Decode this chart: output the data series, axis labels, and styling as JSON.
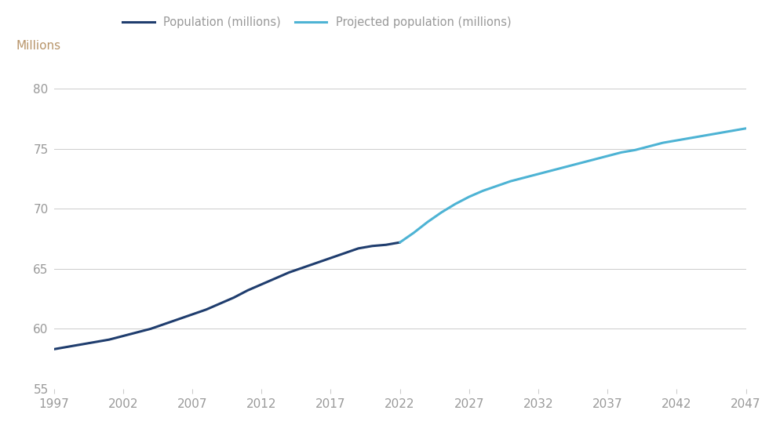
{
  "ylabel": "Millions",
  "xlim": [
    1997,
    2047
  ],
  "ylim": [
    55,
    82
  ],
  "yticks": [
    55,
    60,
    65,
    70,
    75,
    80
  ],
  "xticks": [
    1997,
    2002,
    2007,
    2012,
    2017,
    2022,
    2027,
    2032,
    2037,
    2042,
    2047
  ],
  "historical_color": "#1f3d6e",
  "projected_color": "#4db3d4",
  "background_color": "#ffffff",
  "grid_color": "#cccccc",
  "tick_color": "#999999",
  "label_color": "#b8956a",
  "legend_label_1": "Population (millions)",
  "legend_label_2": "Projected population (millions)",
  "historical_years": [
    1997,
    1998,
    1999,
    2000,
    2001,
    2002,
    2003,
    2004,
    2005,
    2006,
    2007,
    2008,
    2009,
    2010,
    2011,
    2012,
    2013,
    2014,
    2015,
    2016,
    2017,
    2018,
    2019,
    2020,
    2021,
    2022
  ],
  "historical_values": [
    58.3,
    58.5,
    58.7,
    58.9,
    59.1,
    59.4,
    59.7,
    60.0,
    60.4,
    60.8,
    61.2,
    61.6,
    62.1,
    62.6,
    63.2,
    63.7,
    64.2,
    64.7,
    65.1,
    65.5,
    65.9,
    66.3,
    66.7,
    66.9,
    67.0,
    67.2
  ],
  "projected_years": [
    2022,
    2023,
    2024,
    2025,
    2026,
    2027,
    2028,
    2029,
    2030,
    2031,
    2032,
    2033,
    2034,
    2035,
    2036,
    2037,
    2038,
    2039,
    2040,
    2041,
    2042,
    2043,
    2044,
    2045,
    2046,
    2047
  ],
  "projected_values": [
    67.2,
    68.0,
    68.9,
    69.7,
    70.4,
    71.0,
    71.5,
    71.9,
    72.3,
    72.6,
    72.9,
    73.2,
    73.5,
    73.8,
    74.1,
    74.4,
    74.7,
    74.9,
    75.2,
    75.5,
    75.7,
    75.9,
    76.1,
    76.3,
    76.5,
    76.7
  ]
}
